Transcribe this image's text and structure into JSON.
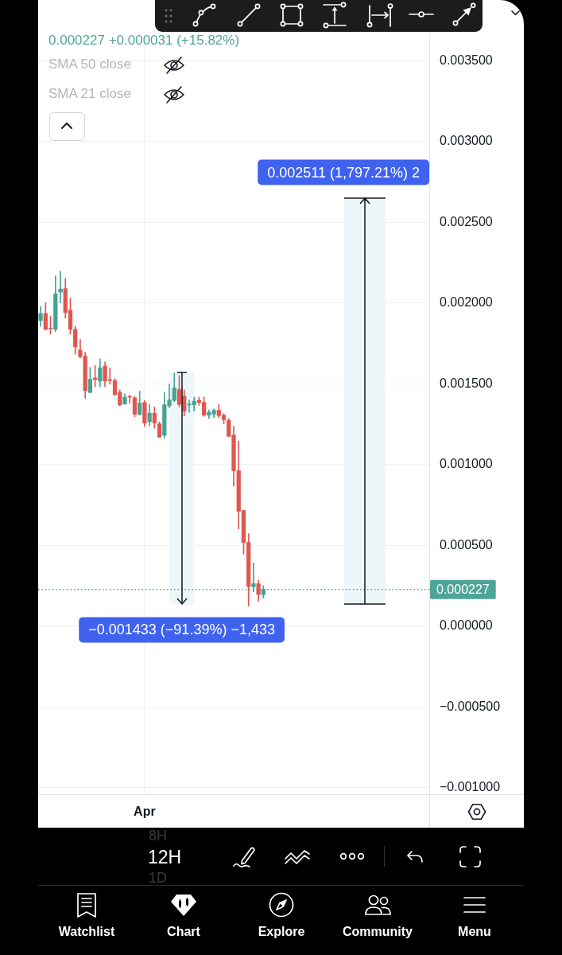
{
  "chart_data": {
    "type": "candlestick",
    "subtitle": "0.000227 +0.000031 (+15.82%)",
    "categories": [
      null,
      null,
      null,
      null,
      null,
      null,
      null,
      null,
      null,
      null,
      null,
      null,
      null,
      null,
      null,
      null,
      null,
      null,
      null,
      null,
      null,
      "Apr",
      null,
      null,
      null,
      null,
      null,
      null,
      null,
      null,
      null,
      null,
      null,
      null,
      null,
      null,
      null,
      null,
      null,
      null,
      null,
      null,
      null,
      null,
      null,
      null,
      null,
      null,
      null,
      null,
      null,
      null,
      null,
      null,
      null,
      null,
      null,
      null,
      null,
      null,
      null,
      null,
      null,
      null,
      null,
      null,
      null,
      null,
      null,
      null,
      null,
      null,
      null,
      null,
      null,
      null,
      null,
      null,
      null
    ],
    "ohlc": [
      [
        0.001892,
        0.001979,
        0.001856,
        0.001935
      ],
      [
        0.001935,
        0.002001,
        0.001832,
        0.001837
      ],
      [
        0.001845,
        0.001919,
        0.001807,
        0.00184
      ],
      [
        0.001837,
        0.002168,
        0.001823,
        0.002057
      ],
      [
        0.002067,
        0.002196,
        0.002001,
        0.002086
      ],
      [
        0.002089,
        0.002152,
        0.001906,
        0.001941
      ],
      [
        0.001955,
        0.002029,
        0.001807,
        0.001837
      ],
      [
        0.001837,
        0.001856,
        0.001684,
        0.001728
      ],
      [
        0.001709,
        0.001774,
        0.001659,
        0.001668
      ],
      [
        0.001671,
        0.001695,
        0.00141,
        0.001458
      ],
      [
        0.001446,
        0.001602,
        0.001443,
        0.001528
      ],
      [
        0.001536,
        0.001614,
        0.001482,
        0.001526
      ],
      [
        0.001517,
        0.001654,
        0.001482,
        0.001599
      ],
      [
        0.00161,
        0.001635,
        0.001482,
        0.001517
      ],
      [
        0.001526,
        0.001597,
        0.001498,
        0.00152
      ],
      [
        0.00152,
        0.001533,
        0.001425,
        0.001434
      ],
      [
        0.001446,
        0.001462,
        0.001364,
        0.001369
      ],
      [
        0.001375,
        0.001438,
        0.001372,
        0.001417
      ],
      [
        0.001422,
        0.001429,
        0.00138,
        0.001417
      ],
      [
        0.001413,
        0.001422,
        0.001295,
        0.001311
      ],
      [
        0.001311,
        0.001454,
        0.001306,
        0.00138
      ],
      [
        0.001384,
        0.001397,
        0.001236,
        0.001257
      ],
      [
        0.001265,
        0.001372,
        0.001241,
        0.001318
      ],
      [
        0.001318,
        0.001356,
        0.001225,
        0.001257
      ],
      [
        0.001252,
        0.001265,
        0.001167,
        0.00117
      ],
      [
        0.00118,
        0.001449,
        0.001164,
        0.00137
      ],
      [
        0.001364,
        0.001498,
        0.001351,
        0.0014
      ],
      [
        0.001397,
        0.001566,
        0.001389,
        0.001474
      ],
      [
        0.001466,
        0.00155,
        0.001356,
        0.001372
      ],
      [
        0.001424,
        0.001462,
        0.001301,
        0.001331
      ],
      [
        0.001369,
        0.0014,
        0.001323,
        0.001375
      ],
      [
        0.001369,
        0.001417,
        0.001331,
        0.001392
      ],
      [
        0.001397,
        0.001417,
        0.001367,
        0.001384
      ],
      [
        0.001385,
        0.001417,
        0.001298,
        0.001306
      ],
      [
        0.001306,
        0.001339,
        0.001285,
        0.001323
      ],
      [
        0.001312,
        0.001344,
        0.00129,
        0.001336
      ],
      [
        0.001336,
        0.001372,
        0.00129,
        0.001303
      ],
      [
        0.001306,
        0.001315,
        0.001252,
        0.001277
      ],
      [
        0.001274,
        0.001285,
        0.001173,
        0.001175
      ],
      [
        0.001183,
        0.001236,
        0.000868,
        0.000962
      ],
      [
        0.000962,
        0.001146,
        0.000601,
        0.000711
      ],
      [
        0.000716,
        0.000716,
        0.000445,
        0.000518
      ],
      [
        0.000518,
        0.000573,
        0.000125,
        0.000245
      ],
      [
        0.000244,
        0.000392,
        0.000212,
        0.000263
      ],
      [
        0.000263,
        0.000283,
        0.000153,
        0.000196
      ],
      [
        0.000195,
        0.000251,
        0.000174,
        0.000227
      ],
      null,
      null,
      null,
      null,
      null,
      null,
      null,
      null,
      null,
      null,
      null,
      null,
      null,
      null,
      null,
      null,
      null,
      null,
      null,
      null,
      null,
      null,
      null,
      null,
      null,
      null,
      null,
      null,
      null,
      null,
      null,
      null,
      null
    ],
    "colors": [
      "#45a393",
      "#e0574f",
      "#e0574f",
      "#45a393",
      "#45a393",
      "#e0574f",
      "#e0574f",
      "#e0574f",
      "#e0574f",
      "#e0574f",
      "#45a393",
      "#e0574f",
      "#45a393",
      "#e0574f",
      "#e0574f",
      "#e0574f",
      "#e0574f",
      "#45a393",
      "#e0574f",
      "#e0574f",
      "#45a393",
      "#e0574f",
      "#45a393",
      "#e0574f",
      "#e0574f",
      "#45a393",
      "#45a393",
      "#45a393",
      "#e0574f",
      "#e0574f",
      "#45a393",
      "#45a393",
      "#e0574f",
      "#e0574f",
      "#45a393",
      "#45a393",
      "#e0574f",
      "#e0574f",
      "#e0574f",
      "#e0574f",
      "#e0574f",
      "#e0574f",
      "#e0574f",
      "#45a393",
      "#e0574f",
      "#45a393",
      null,
      null,
      null,
      null,
      null,
      null,
      null,
      null,
      null,
      null,
      null,
      null,
      null,
      null,
      null,
      null,
      null,
      null,
      null,
      null,
      null,
      null,
      null,
      null,
      null,
      null,
      null,
      null,
      null,
      null,
      null,
      null,
      null
    ],
    "ylim": [
      -0.00104,
      0.003668
    ],
    "yticks": [
      {
        "value": -0.001,
        "label": "−0.001000"
      },
      {
        "value": -0.0005,
        "label": "−0.000500"
      },
      {
        "value": 0,
        "label": "0.000000"
      },
      {
        "value": 0.0005,
        "label": "0.000500"
      },
      {
        "value": 0.001,
        "label": "0.001000"
      },
      {
        "value": 0.0015,
        "label": "0.001500"
      },
      {
        "value": 0.002,
        "label": "0.002000"
      },
      {
        "value": 0.0025,
        "label": "0.002500"
      },
      {
        "value": 0.003,
        "label": "0.003000"
      },
      {
        "value": 0.0035,
        "label": "0.003500"
      }
    ],
    "grid": true,
    "ref_lines": [
      {
        "axis": "y",
        "value": 0.000227,
        "label": "0.000227",
        "color": "#4ea597",
        "line_style": "dotted"
      }
    ],
    "bands": [
      {
        "axis": "y",
        "from": 0.001568,
        "to": 0.000135,
        "label": "−0.001433 (−91.39%) −1,433",
        "color": "#edf7fa"
      },
      {
        "axis": "y",
        "from": 0.0001397,
        "to": 0.0026507,
        "label": "0.002511 (1,797.21%) 2",
        "color": "#edf7fa"
      }
    ],
    "annotations": [
      "SMA 50 close",
      "SMA 21 close",
      "12H",
      "8H",
      "1D",
      "Watchlist",
      "Chart",
      "Explore",
      "Community",
      "Menu"
    ]
  }
}
